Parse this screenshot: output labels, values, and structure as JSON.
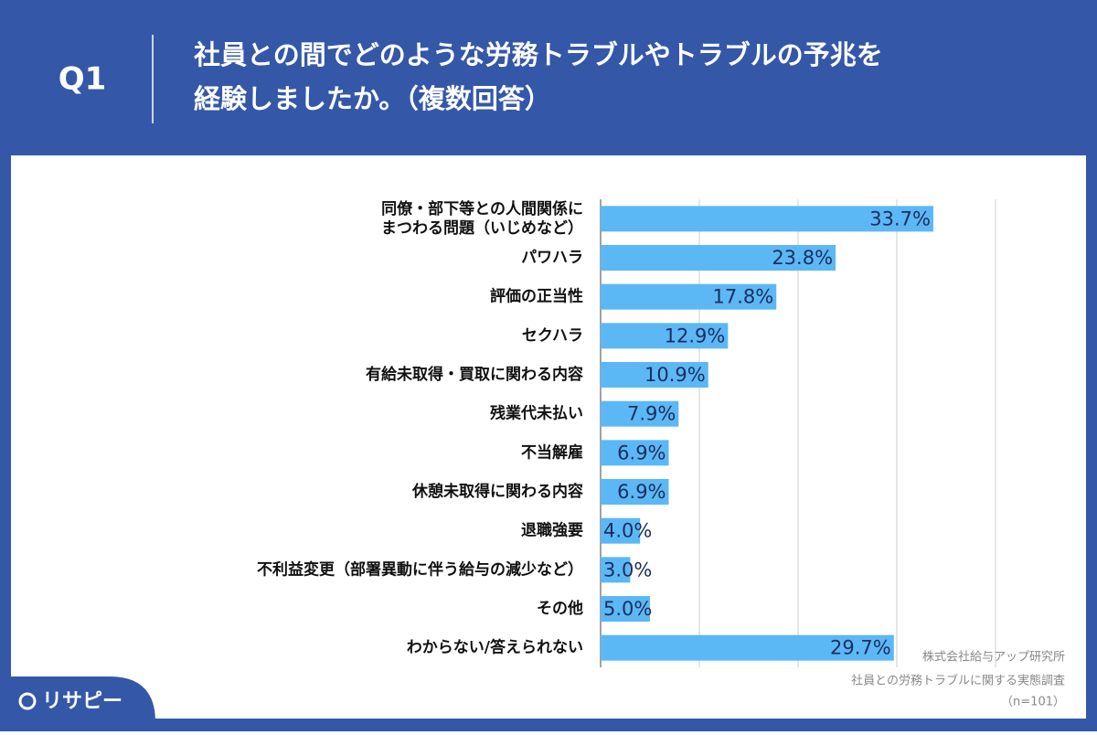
{
  "header": {
    "question": "Q1",
    "title_lines": [
      "社員との間でどのような労務トラブルやトラブルの予兆を",
      "経験しましたか。（複数回答）"
    ]
  },
  "chart_data": {
    "type": "bar",
    "orientation": "horizontal",
    "categories": [
      "同僚・部下等との人間関係に\nまつわる問題（いじめなど）",
      "パワハラ",
      "評価の正当性",
      "セクハラ",
      "有給未取得・買取に関わる内容",
      "残業代未払い",
      "不当解雇",
      "休憩未取得に関わる内容",
      "退職強要",
      "不利益変更（部署異動に伴う給与の減少など）",
      "その他",
      "わからない/答えられない"
    ],
    "values": [
      33.7,
      23.8,
      17.8,
      12.9,
      10.9,
      7.9,
      6.9,
      6.9,
      4.0,
      3.0,
      5.0,
      29.7
    ],
    "value_labels": [
      "33.7%",
      "23.8%",
      "17.8%",
      "12.9%",
      "10.9%",
      "7.9%",
      "6.9%",
      "6.9%",
      "4.0%",
      "3.0%",
      "5.0%",
      "29.7%"
    ],
    "color": "#5bb8f5",
    "xlim": [
      0,
      40
    ],
    "xticks": [
      0,
      10,
      20,
      30,
      40
    ],
    "grid": true
  },
  "source": {
    "lines": [
      "株式会社給与アップ研究所",
      "社員との労務トラブルに関する実態調査",
      "（n=101）"
    ]
  },
  "logo": "リサピー"
}
